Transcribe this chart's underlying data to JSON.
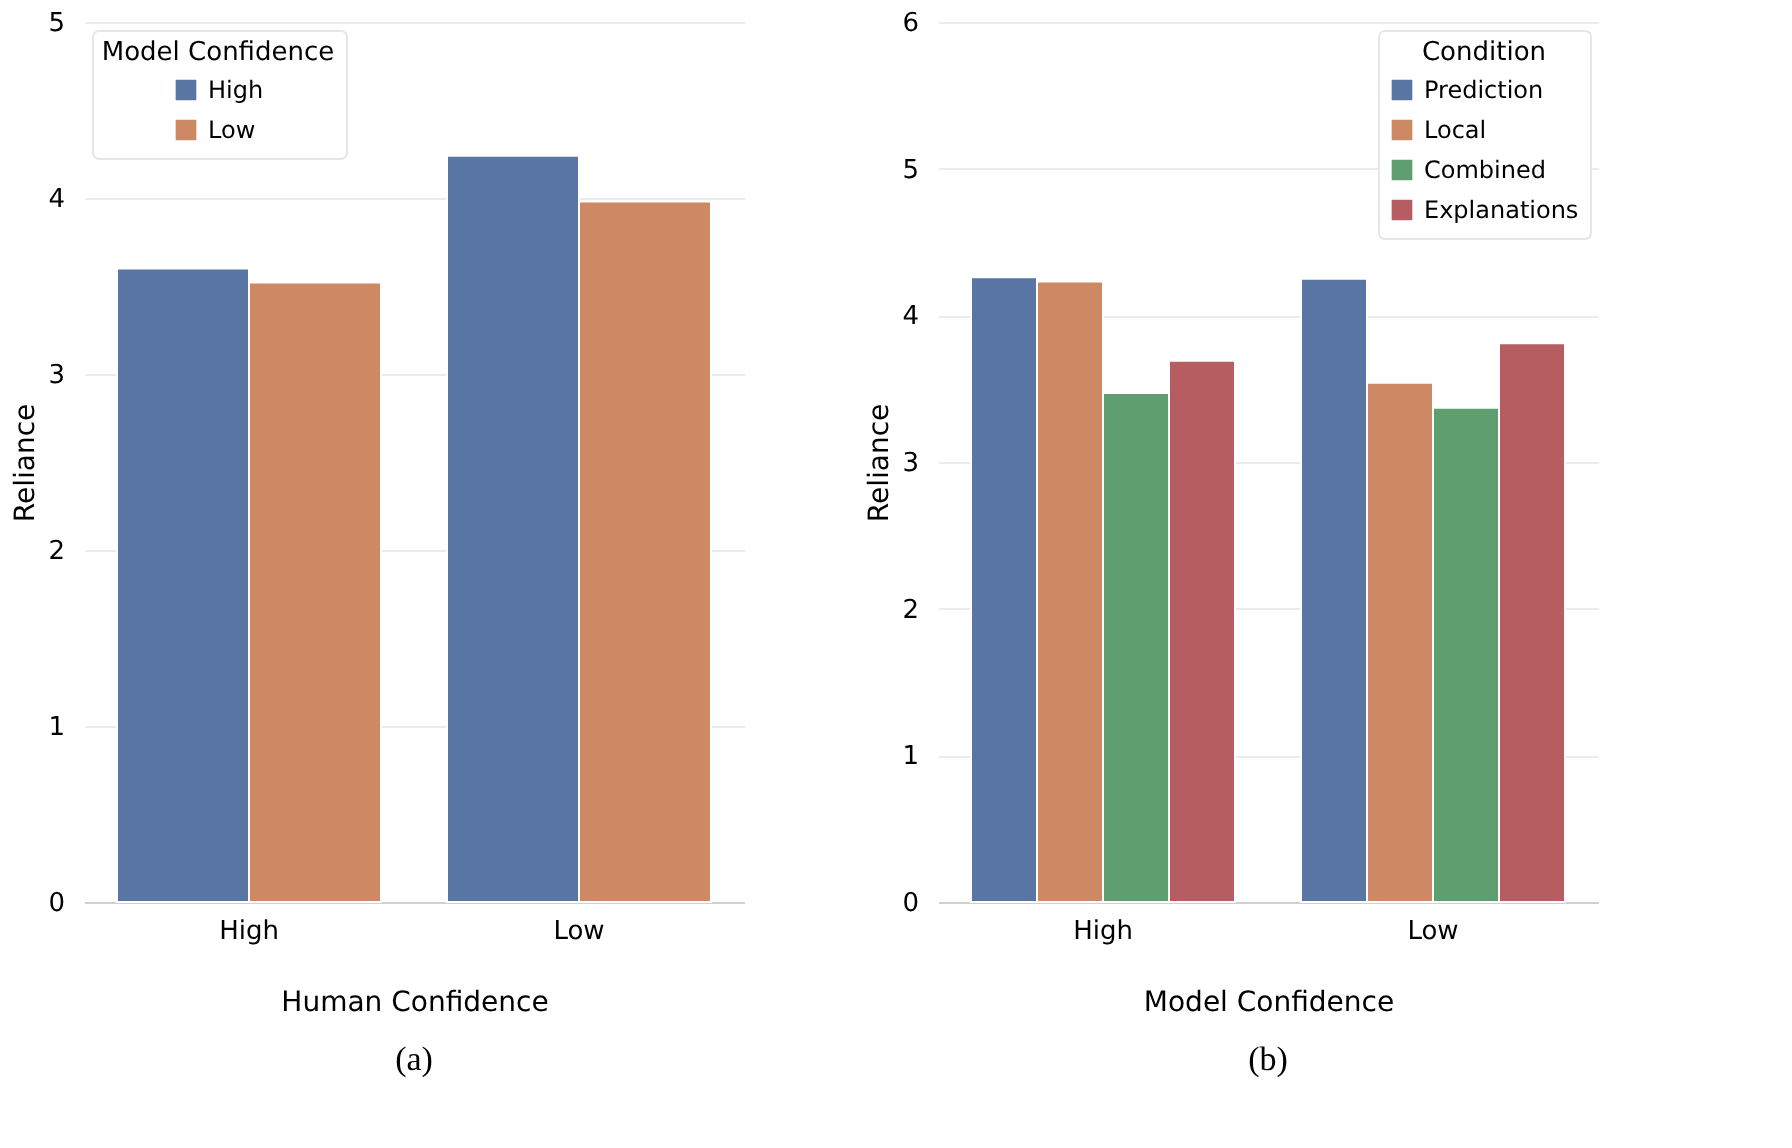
{
  "chart_data": [
    {
      "type": "bar",
      "categories": [
        "High",
        "Low"
      ],
      "xlabel": "Human Confidence",
      "ylabel": "Reliance",
      "legend_title": "Model Confidence",
      "legend": "top left",
      "grid": "y",
      "ylim": [
        0,
        5
      ],
      "yticks": [
        0,
        1,
        2,
        3,
        4,
        5
      ],
      "annotations": [
        "(a)"
      ],
      "series": [
        {
          "name": "High",
          "color": "#5875a4",
          "values": [
            3.6,
            4.24
          ]
        },
        {
          "name": "Low",
          "color": "#cc8963",
          "values": [
            3.52,
            3.98
          ]
        }
      ]
    },
    {
      "type": "bar",
      "categories": [
        "High",
        "Low"
      ],
      "xlabel": "Model Confidence",
      "ylabel": "Reliance",
      "legend_title": "Condition",
      "legend": "top right",
      "grid": "y",
      "ylim": [
        0,
        6
      ],
      "yticks": [
        0,
        1,
        2,
        3,
        4,
        5,
        6
      ],
      "annotations": [
        "(b)"
      ],
      "series": [
        {
          "name": "Prediction",
          "color": "#5875a4",
          "values": [
            4.26,
            4.25
          ]
        },
        {
          "name": "Local",
          "color": "#cc8963",
          "values": [
            4.23,
            3.54
          ]
        },
        {
          "name": "Combined",
          "color": "#5f9e6e",
          "values": [
            3.47,
            3.37
          ]
        },
        {
          "name": "Explanations",
          "color": "#b55d60",
          "values": [
            3.69,
            3.81
          ]
        }
      ]
    }
  ]
}
